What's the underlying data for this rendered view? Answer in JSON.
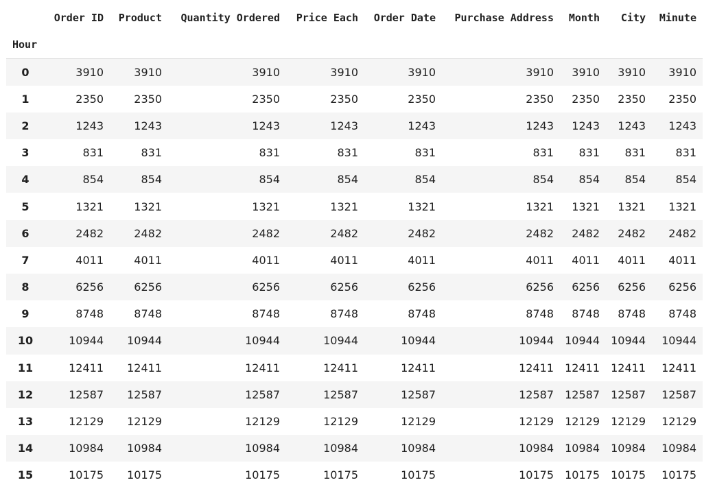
{
  "table": {
    "index_name": "Hour",
    "columns": [
      "Order ID",
      "Product",
      "Quantity Ordered",
      "Price Each",
      "Order Date",
      "Purchase Address",
      "Month",
      "City",
      "Minute"
    ],
    "rows": [
      {
        "index": "0",
        "values": [
          "3910",
          "3910",
          "3910",
          "3910",
          "3910",
          "3910",
          "3910",
          "3910",
          "3910"
        ]
      },
      {
        "index": "1",
        "values": [
          "2350",
          "2350",
          "2350",
          "2350",
          "2350",
          "2350",
          "2350",
          "2350",
          "2350"
        ]
      },
      {
        "index": "2",
        "values": [
          "1243",
          "1243",
          "1243",
          "1243",
          "1243",
          "1243",
          "1243",
          "1243",
          "1243"
        ]
      },
      {
        "index": "3",
        "values": [
          "831",
          "831",
          "831",
          "831",
          "831",
          "831",
          "831",
          "831",
          "831"
        ]
      },
      {
        "index": "4",
        "values": [
          "854",
          "854",
          "854",
          "854",
          "854",
          "854",
          "854",
          "854",
          "854"
        ]
      },
      {
        "index": "5",
        "values": [
          "1321",
          "1321",
          "1321",
          "1321",
          "1321",
          "1321",
          "1321",
          "1321",
          "1321"
        ]
      },
      {
        "index": "6",
        "values": [
          "2482",
          "2482",
          "2482",
          "2482",
          "2482",
          "2482",
          "2482",
          "2482",
          "2482"
        ]
      },
      {
        "index": "7",
        "values": [
          "4011",
          "4011",
          "4011",
          "4011",
          "4011",
          "4011",
          "4011",
          "4011",
          "4011"
        ]
      },
      {
        "index": "8",
        "values": [
          "6256",
          "6256",
          "6256",
          "6256",
          "6256",
          "6256",
          "6256",
          "6256",
          "6256"
        ]
      },
      {
        "index": "9",
        "values": [
          "8748",
          "8748",
          "8748",
          "8748",
          "8748",
          "8748",
          "8748",
          "8748",
          "8748"
        ]
      },
      {
        "index": "10",
        "values": [
          "10944",
          "10944",
          "10944",
          "10944",
          "10944",
          "10944",
          "10944",
          "10944",
          "10944"
        ]
      },
      {
        "index": "11",
        "values": [
          "12411",
          "12411",
          "12411",
          "12411",
          "12411",
          "12411",
          "12411",
          "12411",
          "12411"
        ]
      },
      {
        "index": "12",
        "values": [
          "12587",
          "12587",
          "12587",
          "12587",
          "12587",
          "12587",
          "12587",
          "12587",
          "12587"
        ]
      },
      {
        "index": "13",
        "values": [
          "12129",
          "12129",
          "12129",
          "12129",
          "12129",
          "12129",
          "12129",
          "12129",
          "12129"
        ]
      },
      {
        "index": "14",
        "values": [
          "10984",
          "10984",
          "10984",
          "10984",
          "10984",
          "10984",
          "10984",
          "10984",
          "10984"
        ]
      },
      {
        "index": "15",
        "values": [
          "10175",
          "10175",
          "10175",
          "10175",
          "10175",
          "10175",
          "10175",
          "10175",
          "10175"
        ]
      }
    ]
  },
  "colors": {
    "stripe": "#f5f5f5",
    "text": "#212121",
    "header_rule": "#e0e0e0"
  }
}
